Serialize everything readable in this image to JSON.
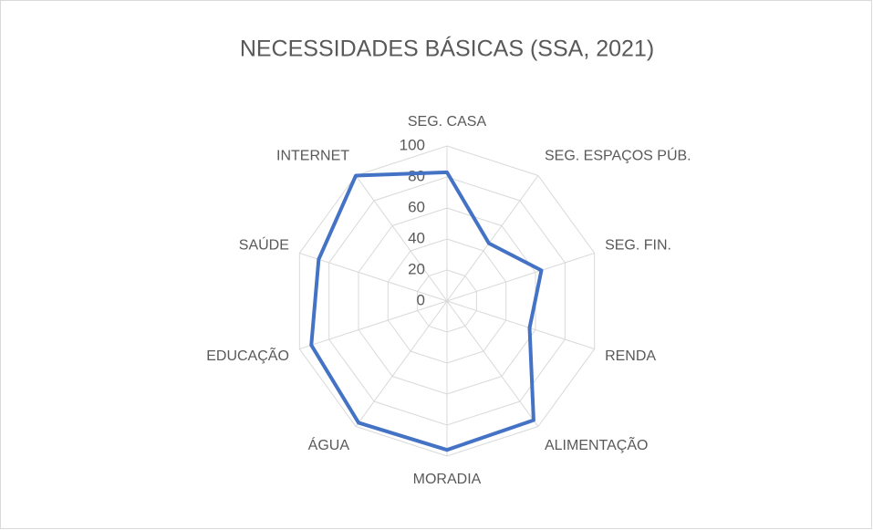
{
  "chart_data": {
    "type": "radar",
    "title": "NECESSIDADES BÁSICAS (SSA, 2021)",
    "categories": [
      "SEG. CASA",
      "SEG. ESPAÇOS PÚB.",
      "SEG. FIN.",
      "RENDA",
      "ALIMENTAÇÃO",
      "MORADIA",
      "ÁGUA",
      "EDUCAÇÃO",
      "SAÚDE",
      "INTERNET"
    ],
    "values": [
      83,
      46,
      64,
      56,
      95,
      96,
      97,
      92,
      87,
      100
    ],
    "color": "#4472c4",
    "ylim": [
      0,
      100
    ],
    "yticks": [
      0,
      20,
      40,
      60,
      80,
      100
    ],
    "grid": true
  }
}
